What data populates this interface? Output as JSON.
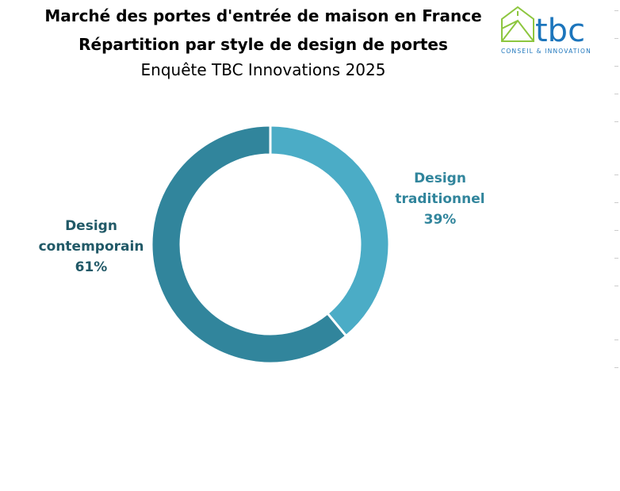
{
  "title": {
    "line1": "Marché des portes d'entrée de maison en France",
    "line2": "Répartition par style de design de portes",
    "line3": "Enquête TBC Innovations 2025"
  },
  "logo": {
    "text": "tbc",
    "tagline": "CONSEIL & INNOVATION",
    "colors": {
      "house": "#8DC63F",
      "text": "#1C75BC"
    }
  },
  "chart_data": {
    "type": "pie",
    "variant": "donut",
    "title": "Marché des portes d'entrée de maison en France — Répartition par style de design de portes",
    "slices": [
      {
        "name": "Design traditionnel",
        "value": 39,
        "label_line1": "Design",
        "label_line2": "traditionnel",
        "label_value": "39%",
        "color": "#4BACC6",
        "label_color": "#31859C"
      },
      {
        "name": "Design contemporain",
        "value": 61,
        "label_line1": "Design",
        "label_line2": "contemporain",
        "label_value": "61%",
        "color": "#31859C",
        "label_color": "#215967"
      }
    ]
  }
}
